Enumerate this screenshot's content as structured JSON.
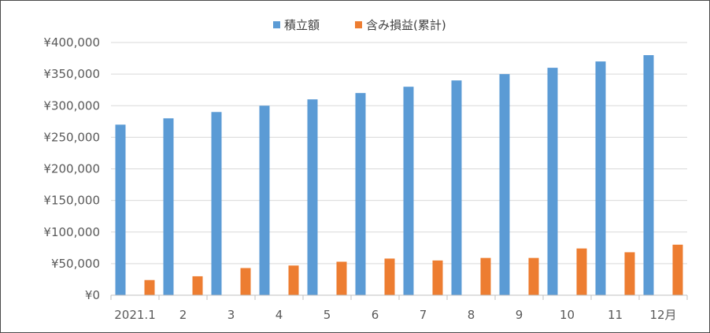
{
  "chart_data": {
    "type": "bar",
    "title": "",
    "xlabel": "",
    "ylabel": "",
    "categories": [
      "2021.1",
      "2",
      "3",
      "4",
      "5",
      "6",
      "7",
      "8",
      "9",
      "10",
      "11",
      "12月"
    ],
    "series": [
      {
        "name": "積立額",
        "color": "#5b9bd5",
        "values": [
          270000,
          280000,
          290000,
          300000,
          310000,
          320000,
          330000,
          340000,
          350000,
          360000,
          370000,
          380000
        ]
      },
      {
        "name": "含み損益(累計)",
        "color": "#ed7d31",
        "values": [
          24000,
          30000,
          43000,
          47000,
          53000,
          58000,
          55000,
          59000,
          59000,
          74000,
          68000,
          80000
        ]
      }
    ],
    "ylim": [
      0,
      400000
    ],
    "yticks": [
      "¥0",
      "¥50,000",
      "¥100,000",
      "¥150,000",
      "¥200,000",
      "¥250,000",
      "¥300,000",
      "¥350,000",
      "¥400,000"
    ],
    "grid": true,
    "legend_position": "top-center"
  }
}
